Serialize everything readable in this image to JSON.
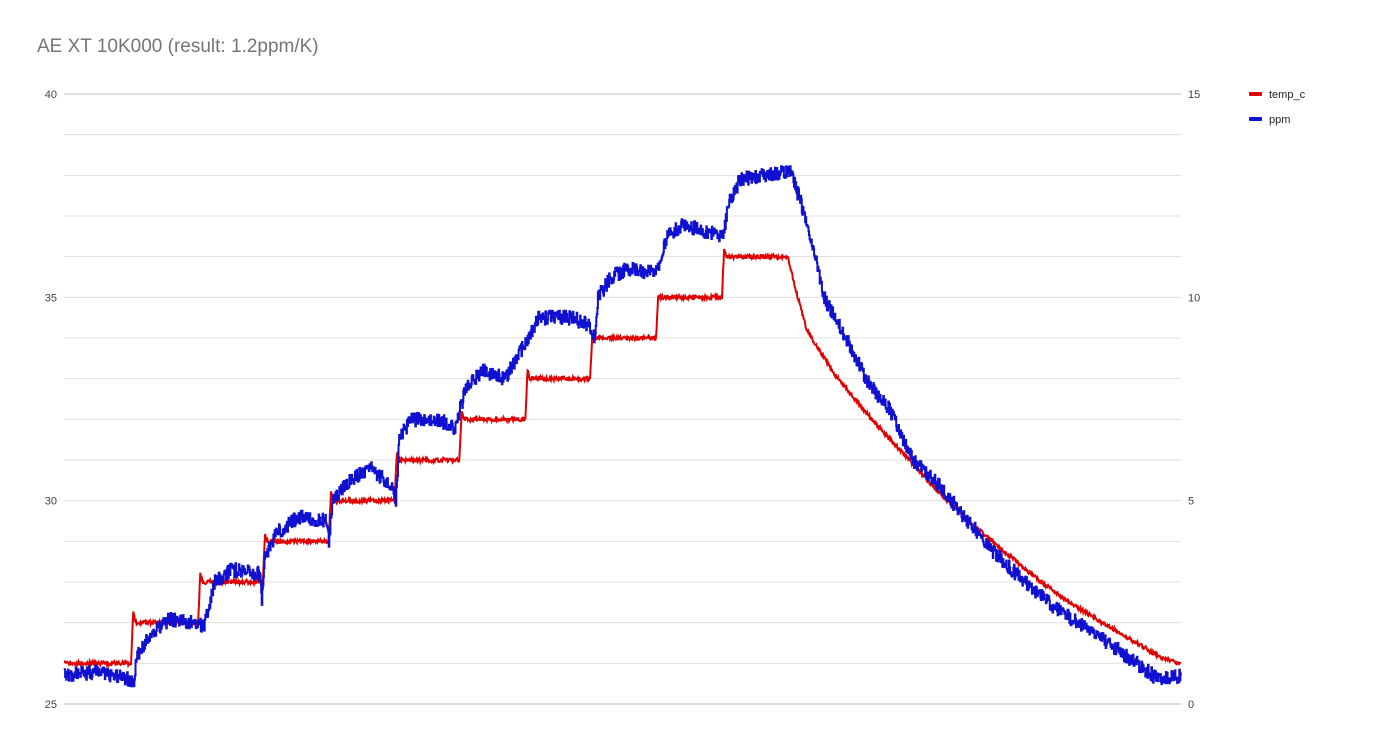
{
  "chart_data": {
    "type": "line",
    "title": "AE XT 10K000 (result: 1.2ppm/K)",
    "xlabel": "",
    "ylabel": "",
    "x_range": [
      0,
      1000
    ],
    "y_left": {
      "range": [
        25,
        40
      ],
      "ticks": [
        "40",
        "35",
        "30",
        "25"
      ],
      "tick_values": [
        40,
        35,
        30,
        25
      ],
      "gridlines": 15
    },
    "y_right": {
      "range": [
        0,
        15
      ],
      "ticks": [
        "15",
        "10",
        "5",
        "0"
      ],
      "tick_values": [
        15,
        10,
        5,
        0
      ]
    },
    "grid": true,
    "legend_position": "top-right",
    "colors": {
      "temp_c": "#e00000",
      "ppm": "#1010d0"
    },
    "series": [
      {
        "name": "temp_c",
        "axis": "left",
        "color": "#e00000",
        "points": [
          [
            0,
            26.0
          ],
          [
            60,
            26.0
          ],
          [
            62,
            27.3
          ],
          [
            64,
            27.0
          ],
          [
            120,
            27.0
          ],
          [
            122,
            28.2
          ],
          [
            124,
            28.0
          ],
          [
            178,
            28.0
          ],
          [
            180,
            29.2
          ],
          [
            182,
            29.0
          ],
          [
            237,
            29.0
          ],
          [
            239,
            30.2
          ],
          [
            241,
            30.0
          ],
          [
            296,
            30.0
          ],
          [
            298,
            31.2
          ],
          [
            300,
            31.0
          ],
          [
            354,
            31.0
          ],
          [
            356,
            32.2
          ],
          [
            358,
            32.0
          ],
          [
            413,
            32.0
          ],
          [
            415,
            33.2
          ],
          [
            417,
            33.0
          ],
          [
            471,
            33.0
          ],
          [
            473,
            34.1
          ],
          [
            475,
            34.0
          ],
          [
            530,
            34.0
          ],
          [
            532,
            35.0
          ],
          [
            589,
            35.0
          ],
          [
            591,
            36.2
          ],
          [
            593,
            36.0
          ],
          [
            648,
            36.0
          ],
          [
            655,
            35.2
          ],
          [
            665,
            34.2
          ],
          [
            690,
            33.1
          ],
          [
            720,
            32.1
          ],
          [
            750,
            31.2
          ],
          [
            780,
            30.3
          ],
          [
            810,
            29.5
          ],
          [
            840,
            28.8
          ],
          [
            870,
            28.1
          ],
          [
            900,
            27.5
          ],
          [
            930,
            27.0
          ],
          [
            960,
            26.5
          ],
          [
            985,
            26.1
          ],
          [
            1000,
            26.0
          ]
        ]
      },
      {
        "name": "ppm",
        "axis": "right",
        "color": "#1010d0",
        "points": [
          [
            0,
            0.7
          ],
          [
            30,
            0.8
          ],
          [
            60,
            0.6
          ],
          [
            62,
            0.5
          ],
          [
            65,
            1.2
          ],
          [
            80,
            1.8
          ],
          [
            95,
            2.1
          ],
          [
            110,
            2.0
          ],
          [
            120,
            2.0
          ],
          [
            125,
            1.9
          ],
          [
            135,
            3.0
          ],
          [
            150,
            3.3
          ],
          [
            175,
            3.2
          ],
          [
            177,
            2.6
          ],
          [
            180,
            3.6
          ],
          [
            190,
            4.2
          ],
          [
            210,
            4.6
          ],
          [
            235,
            4.5
          ],
          [
            237,
            4.0
          ],
          [
            240,
            5.0
          ],
          [
            255,
            5.5
          ],
          [
            275,
            5.8
          ],
          [
            295,
            5.3
          ],
          [
            297,
            5.0
          ],
          [
            300,
            6.5
          ],
          [
            310,
            7.0
          ],
          [
            335,
            7.0
          ],
          [
            350,
            6.8
          ],
          [
            360,
            7.8
          ],
          [
            375,
            8.2
          ],
          [
            395,
            8.0
          ],
          [
            405,
            8.5
          ],
          [
            420,
            9.2
          ],
          [
            425,
            9.5
          ],
          [
            455,
            9.5
          ],
          [
            470,
            9.3
          ],
          [
            475,
            9.0
          ],
          [
            478,
            10.0
          ],
          [
            490,
            10.5
          ],
          [
            505,
            10.7
          ],
          [
            530,
            10.6
          ],
          [
            540,
            11.5
          ],
          [
            555,
            11.8
          ],
          [
            575,
            11.6
          ],
          [
            590,
            11.5
          ],
          [
            595,
            12.3
          ],
          [
            605,
            12.9
          ],
          [
            625,
            13.0
          ],
          [
            650,
            13.1
          ],
          [
            660,
            12.3
          ],
          [
            670,
            11.3
          ],
          [
            680,
            10.0
          ],
          [
            700,
            9.0
          ],
          [
            720,
            7.9
          ],
          [
            740,
            7.2
          ],
          [
            760,
            6.0
          ],
          [
            780,
            5.5
          ],
          [
            800,
            4.8
          ],
          [
            830,
            3.8
          ],
          [
            860,
            3.0
          ],
          [
            890,
            2.3
          ],
          [
            920,
            1.8
          ],
          [
            945,
            1.3
          ],
          [
            965,
            0.9
          ],
          [
            980,
            0.6
          ],
          [
            1000,
            0.7
          ]
        ]
      }
    ]
  }
}
